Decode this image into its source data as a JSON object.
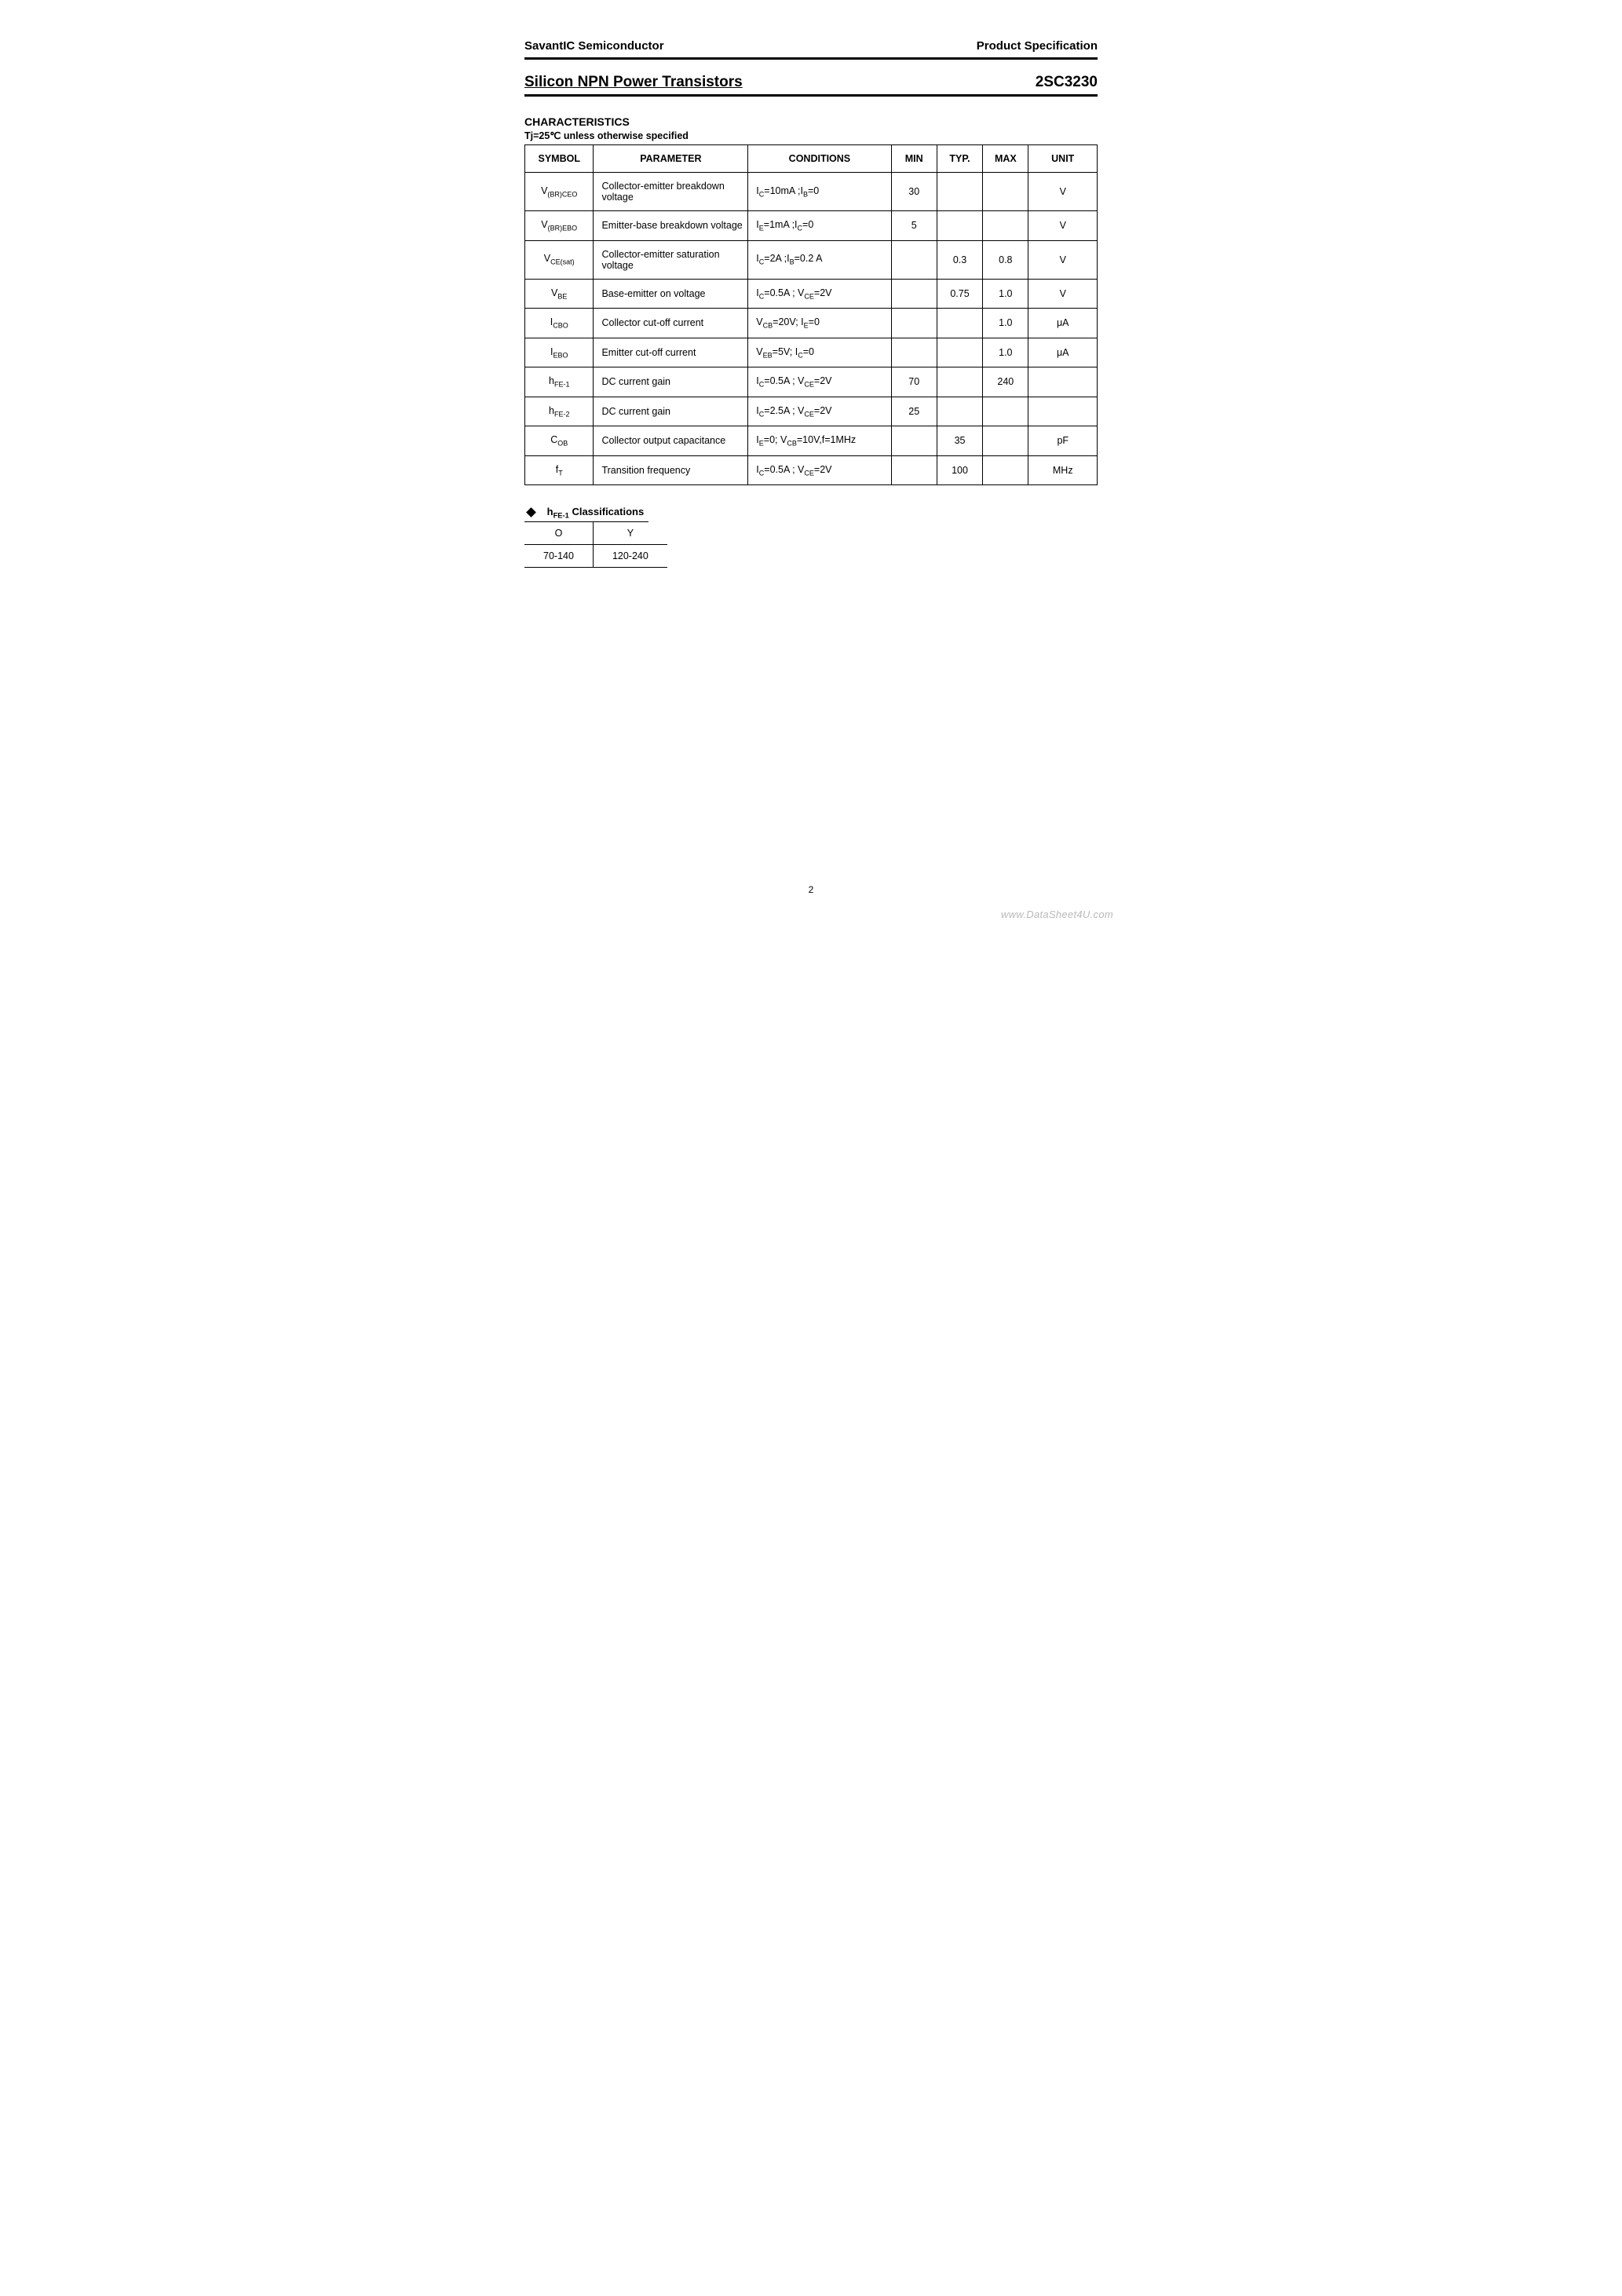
{
  "header": {
    "company": "SavantIC Semiconductor",
    "doc_type": "Product Specification"
  },
  "title": {
    "left": "Silicon NPN Power Transistors",
    "right": "2SC3230"
  },
  "section": {
    "heading": "CHARACTERISTICS",
    "condition": "Tj=25℃ unless otherwise specified"
  },
  "char_table": {
    "columns": [
      "SYMBOL",
      "PARAMETER",
      "CONDITIONS",
      "MIN",
      "TYP.",
      "MAX",
      "UNIT"
    ],
    "col_widths_pct": [
      12,
      27,
      25,
      8,
      8,
      8,
      12
    ],
    "rows": [
      {
        "symbol_html": "V<span class='sub'>(BR)CEO</span>",
        "parameter": "Collector-emitter breakdown voltage",
        "conditions_html": "I<span class='sub'>C</span>=10mA ;I<span class='sub'>B</span>=0",
        "min": "30",
        "typ": "",
        "max": "",
        "unit": "V"
      },
      {
        "symbol_html": "V<span class='sub'>(BR)EBO</span>",
        "parameter": "Emitter-base breakdown voltage",
        "conditions_html": "I<span class='sub'>E</span>=1mA ;I<span class='sub'>C</span>=0",
        "min": "5",
        "typ": "",
        "max": "",
        "unit": "V"
      },
      {
        "symbol_html": "V<span class='sub'>CE(sat)</span>",
        "parameter": "Collector-emitter saturation voltage",
        "conditions_html": "I<span class='sub'>C</span>=2A ;I<span class='sub'>B</span>=0.2 A",
        "min": "",
        "typ": "0.3",
        "max": "0.8",
        "unit": "V"
      },
      {
        "symbol_html": "V<span class='sub'>BE</span>",
        "parameter": "Base-emitter on voltage",
        "conditions_html": "I<span class='sub'>C</span>=0.5A ; V<span class='sub'>CE</span>=2V",
        "min": "",
        "typ": "0.75",
        "max": "1.0",
        "unit": "V"
      },
      {
        "symbol_html": "I<span class='sub'>CBO</span>",
        "parameter": "Collector cut-off current",
        "conditions_html": "V<span class='sub'>CB</span>=20V; I<span class='sub'>E</span>=0",
        "min": "",
        "typ": "",
        "max": "1.0",
        "unit": "μA"
      },
      {
        "symbol_html": "I<span class='sub'>EBO</span>",
        "parameter": "Emitter cut-off current",
        "conditions_html": "V<span class='sub'>EB</span>=5V; I<span class='sub'>C</span>=0",
        "min": "",
        "typ": "",
        "max": "1.0",
        "unit": "μA"
      },
      {
        "symbol_html": "h<span class='sub'>FE-1</span>",
        "parameter": "DC current gain",
        "conditions_html": "I<span class='sub'>C</span>=0.5A ; V<span class='sub'>CE</span>=2V",
        "min": "70",
        "typ": "",
        "max": "240",
        "unit": ""
      },
      {
        "symbol_html": "h<span class='sub'>FE-2</span>",
        "parameter": "DC current gain",
        "conditions_html": "I<span class='sub'>C</span>=2.5A ; V<span class='sub'>CE</span>=2V",
        "min": "25",
        "typ": "",
        "max": "",
        "unit": ""
      },
      {
        "symbol_html": "C<span class='sub'>OB</span>",
        "parameter": "Collector output capacitance",
        "conditions_html": "I<span class='sub'>E</span>=0; V<span class='sub'>CB</span>=10V,f=1MHz",
        "min": "",
        "typ": "35",
        "max": "",
        "unit": "pF"
      },
      {
        "symbol_html": "f<span class='sub'>T</span>",
        "parameter": "Transition frequency",
        "conditions_html": "I<span class='sub'>C</span>=0.5A ; V<span class='sub'>CE</span>=2V",
        "min": "",
        "typ": "100",
        "max": "",
        "unit": "MHz"
      }
    ]
  },
  "classifications": {
    "heading_html": "h<span class='sub'>FE-1</span> Classifications",
    "header": [
      "O",
      "Y"
    ],
    "values": [
      "70-140",
      "120-240"
    ]
  },
  "page_number": "2",
  "watermark": "www.DataSheet4U.com"
}
